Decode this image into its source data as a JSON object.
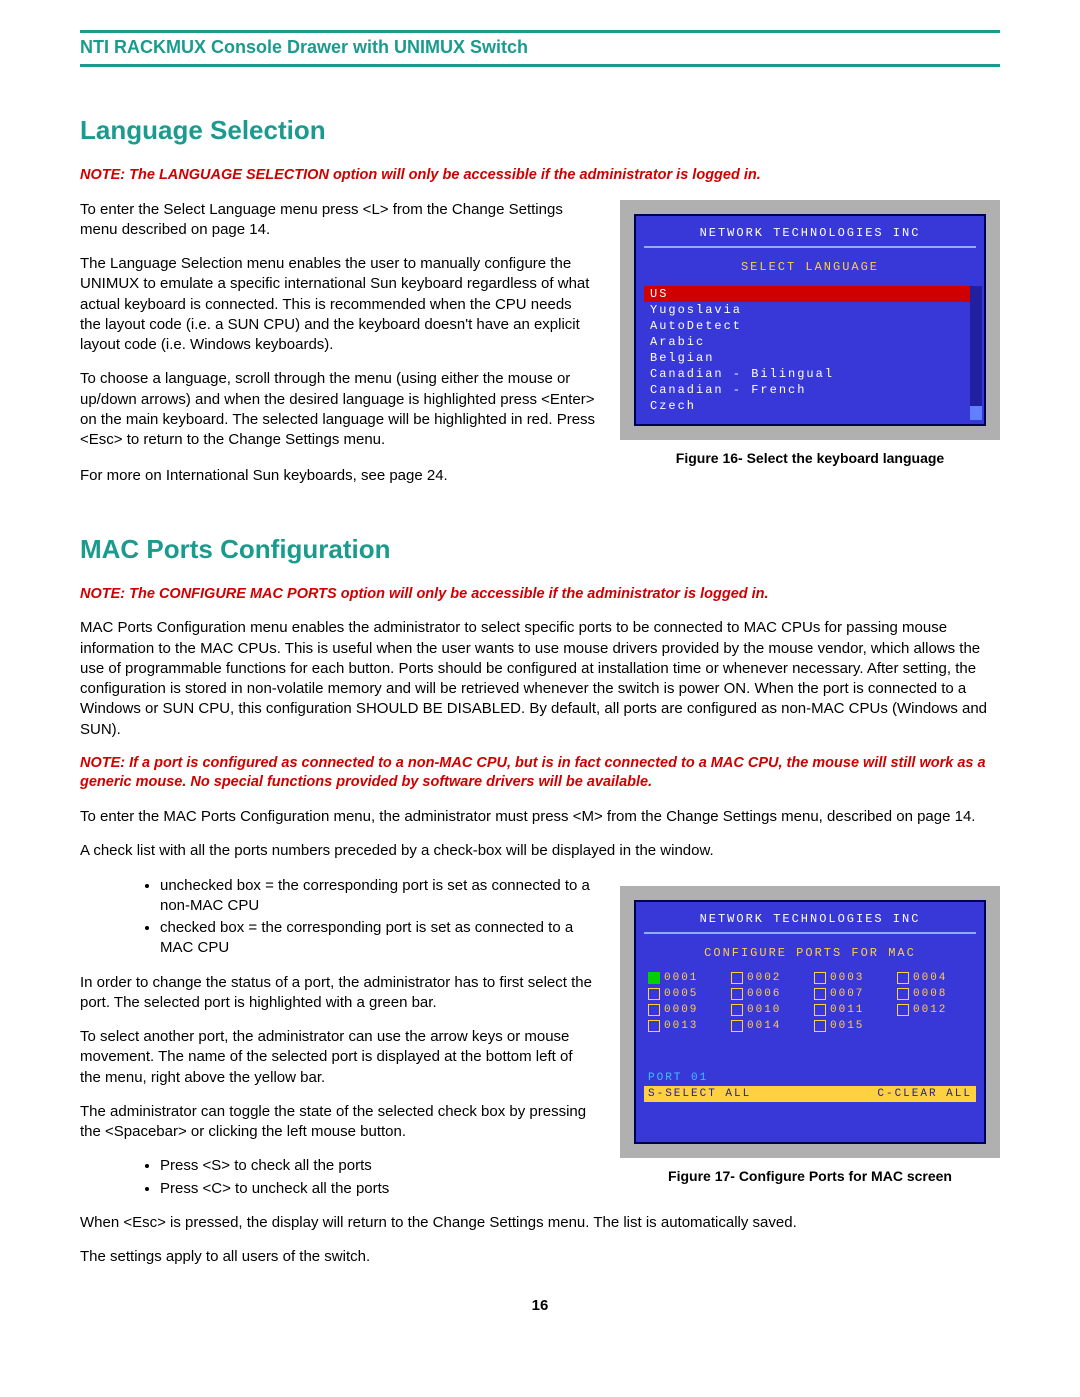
{
  "header": {
    "title": "NTI RACKMUX Console Drawer with UNIMUX Switch"
  },
  "section1": {
    "heading": "Language Selection",
    "note": "NOTE: The LANGUAGE SELECTION option will only be accessible if the administrator is logged in.",
    "para1": "To enter the Select Language menu press <L> from the Change Settings menu described on page 14.",
    "para2": "The Language Selection menu enables the user to manually configure the UNIMUX to emulate a specific international Sun keyboard regardless of what actual keyboard is connected.   This is recommended when the CPU needs the layout code (i.e. a SUN CPU) and the keyboard doesn't have an explicit layout code (i.e. Windows keyboards).",
    "para3": "To choose a language, scroll through the menu (using either the mouse or up/down arrows) and when the desired language is highlighted press <Enter> on the main keyboard.   The selected language will be highlighted in red.  Press <Esc> to return to the Change Settings menu.",
    "para4": "For more on International Sun keyboards, see page 24.",
    "screen": {
      "title": "NETWORK  TECHNOLOGIES  INC",
      "subtitle": "SELECT  LANGUAGE",
      "items": [
        "US",
        "Yugoslavia",
        "AutoDetect",
        "Arabic",
        "Belgian",
        "Canadian  -  Bilingual",
        "Canadian  -  French",
        "Czech"
      ],
      "selected_index": 0
    },
    "caption": "Figure 16- Select the keyboard language"
  },
  "section2": {
    "heading": "MAC Ports Configuration",
    "note1": "NOTE: The CONFIGURE MAC PORTS option will only be accessible if the administrator is logged in.",
    "para1": "MAC Ports Configuration menu enables the administrator to select specific ports to be connected to MAC CPUs for passing mouse information to the MAC CPUs. This is useful when the user wants to use mouse drivers provided by the mouse vendor, which allows the use of programmable functions for each button. Ports should be configured at installation time or whenever necessary.  After setting, the configuration is stored in non-volatile memory and will be retrieved whenever the switch is power ON.  When the port is connected to a Windows or SUN CPU, this configuration SHOULD BE DISABLED. By default, all ports are configured as non-MAC CPUs (Windows and SUN).",
    "note2": "NOTE: If a port is configured as connected to a non-MAC CPU,  but is in fact connected to a MAC CPU,  the mouse will still work as a generic mouse.  No special functions provided by software drivers will be available.",
    "para2": "To enter the MAC Ports Configuration menu, the administrator must press <M> from the Change Settings menu, described on page 14.",
    "para3": "A check list with all the ports numbers preceded by a check-box will be displayed in the window.",
    "bullet1": "unchecked box = the corresponding port is set as connected to a non-MAC CPU",
    "bullet2": "checked box = the corresponding port is set as connected to a MAC CPU",
    "para4": "In order to change the status of a port, the administrator has to first select the port. The selected port is highlighted with a green bar.",
    "para5": "To select another port, the administrator can use the arrow keys or mouse movement. The name of the selected port is displayed at the bottom left of the menu, right above the yellow bar.",
    "para6": "The administrator can toggle the state of the selected check box by pressing the <Spacebar> or clicking the left mouse button.",
    "bullet3": "Press <S> to check all the ports",
    "bullet4": "Press <C> to uncheck all the ports",
    "para7": "When <Esc> is pressed, the display will return to the Change Settings menu. The list is automatically saved.",
    "para8": "The settings apply to all users of the switch.",
    "screen": {
      "title": "NETWORK  TECHNOLOGIES  INC",
      "subtitle": "CONFIGURE  PORTS  FOR  MAC",
      "ports": [
        "0001",
        "0002",
        "0003",
        "0004",
        "0005",
        "0006",
        "0007",
        "0008",
        "0009",
        "0010",
        "0011",
        "0012",
        "0013",
        "0014",
        "0015"
      ],
      "selected_index": 0,
      "footer1": "PORT  01",
      "footer2_left": "S-SELECT ALL",
      "footer2_right": "C-CLEAR ALL"
    },
    "caption": "Figure 17- Configure Ports for MAC screen"
  },
  "page_number": "16",
  "colors": {
    "teal": "#1a9b8e",
    "note_red": "#d00000",
    "screen_bg": "#3838d8",
    "screen_yellow": "#ffd040"
  }
}
